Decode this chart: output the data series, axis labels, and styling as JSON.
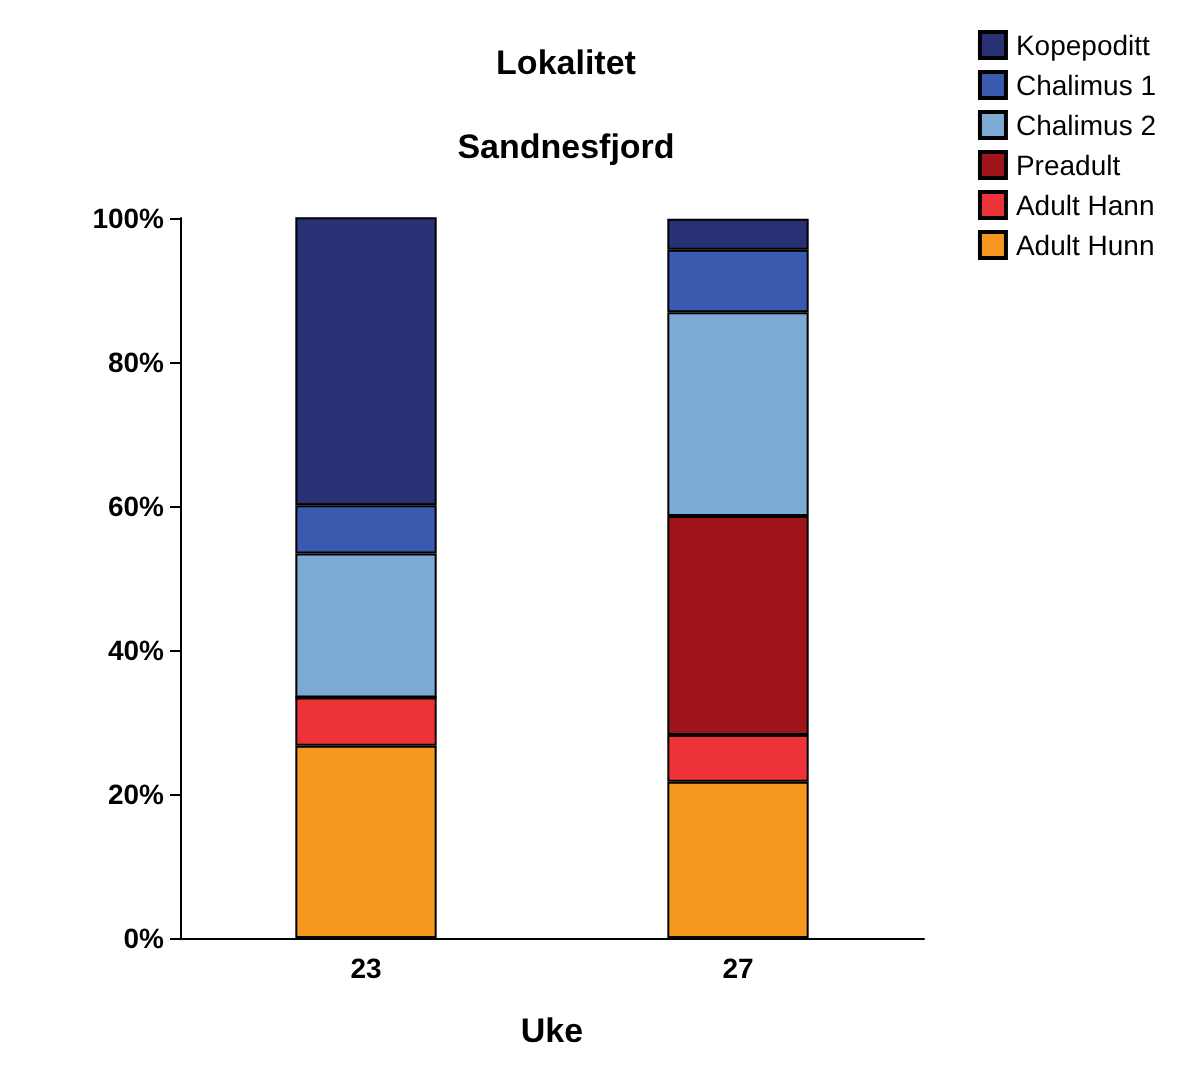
{
  "chart_data": {
    "type": "bar",
    "title": "Lokalitet",
    "subtitle": "Sandnesfjord",
    "xlabel": "Uke",
    "categories": [
      "23",
      "27"
    ],
    "stacked": true,
    "legend": "top right",
    "grid": false,
    "ylim": [
      0,
      100
    ],
    "yticks": [
      {
        "value": 0,
        "label": "0%"
      },
      {
        "value": 20,
        "label": "20%"
      },
      {
        "value": 40,
        "label": "40%"
      },
      {
        "value": 60,
        "label": "60%"
      },
      {
        "value": 80,
        "label": "80%"
      },
      {
        "value": 100,
        "label": "100%"
      }
    ],
    "series": [
      {
        "name": "Adult Hunn",
        "color": "#f6981f",
        "values": [
          26.7,
          21.7
        ]
      },
      {
        "name": "Adult Hann",
        "color": "#ee3338",
        "values": [
          6.7,
          6.5
        ]
      },
      {
        "name": "Preadult",
        "color": "#a0141c",
        "values": [
          0,
          30.4
        ]
      },
      {
        "name": "Chalimus 2",
        "color": "#7eaad6",
        "values": [
          20,
          28.3
        ]
      },
      {
        "name": "Chalimus 1",
        "color": "#3a5ab0",
        "values": [
          6.7,
          8.7
        ]
      },
      {
        "name": "Kopepoditt",
        "color": "#283174",
        "values": [
          40,
          4.3
        ]
      }
    ]
  }
}
